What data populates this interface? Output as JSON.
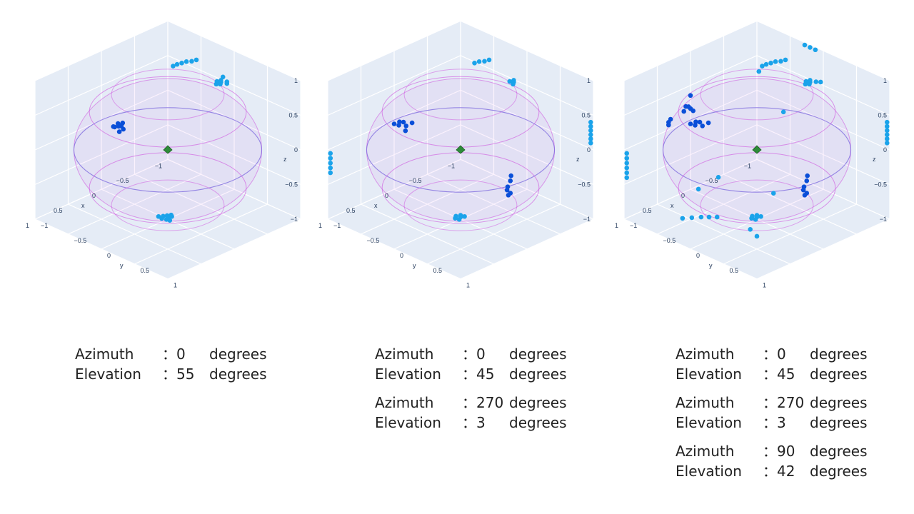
{
  "colors": {
    "background": "#ffffff",
    "pane": "#e5ecf6",
    "grid": "#ffffff",
    "tick": "#2a3f5f",
    "point_light": "#1aa3ea",
    "point_dark": "#0a4fd8",
    "sphere": "#cc44dd",
    "equator": "#7a66dd",
    "marker": "#2e8b3a"
  },
  "chart_data": [
    {
      "type": "scatter3d",
      "axes": {
        "x": "x",
        "y": "y",
        "z": "z"
      },
      "ticks": {
        "x": [
          "−1",
          "−0.5",
          "0",
          "0.5",
          "1"
        ],
        "y": [
          "1",
          "0.5",
          "0",
          "−0.5",
          "−1"
        ],
        "z": [
          "−1",
          "−0.5",
          "0",
          "0.5",
          "1"
        ]
      },
      "xlim": [
        -1,
        1
      ],
      "ylim": [
        -1,
        1
      ],
      "zlim": [
        -1,
        1
      ],
      "grid": true,
      "series": [
        {
          "values": [
            {
              "x": 0.74,
              "y": 0.0,
              "z": 0.66
            },
            {
              "x": 0.74,
              "y": 0.04,
              "z": 0.68
            },
            {
              "x": 0.71,
              "y": -0.04,
              "z": 0.67
            },
            {
              "x": 0.77,
              "y": -0.03,
              "z": 0.65
            },
            {
              "x": 0.73,
              "y": 0.06,
              "z": 0.64
            },
            {
              "x": 0.76,
              "y": 0.02,
              "z": 0.69
            },
            {
              "x": 0.7,
              "y": 0.02,
              "z": 0.7
            },
            {
              "x": 0.78,
              "y": 0.05,
              "z": 0.62
            },
            {
              "x": 0.75,
              "y": -0.07,
              "z": 0.63
            }
          ]
        },
        {
          "values": [
            {
              "x": 0.0,
              "y": 0.0,
              "z": -0.97
            },
            {
              "x": 0.05,
              "y": 0.03,
              "z": -0.97
            },
            {
              "x": -0.04,
              "y": 0.02,
              "z": -0.97
            },
            {
              "x": 0.02,
              "y": -0.05,
              "z": -0.97
            },
            {
              "x": -0.02,
              "y": -0.03,
              "z": -0.97
            },
            {
              "x": 0.07,
              "y": -0.02,
              "z": -0.97
            },
            {
              "x": 0.04,
              "y": 0.07,
              "z": -0.97
            },
            {
              "x": -0.06,
              "y": -0.01,
              "z": -0.97
            },
            {
              "x": 0.06,
              "y": -0.08,
              "z": -0.97
            },
            {
              "x": -0.4,
              "y": 0.4,
              "z": 0.98
            },
            {
              "x": -0.36,
              "y": 0.43,
              "z": 0.98
            },
            {
              "x": -0.43,
              "y": 0.37,
              "z": 0.98
            },
            {
              "x": -0.38,
              "y": 0.36,
              "z": 0.98
            },
            {
              "x": -0.45,
              "y": 0.44,
              "z": 0.98
            },
            {
              "x": -0.33,
              "y": 0.4,
              "z": 0.98
            },
            {
              "x": -0.5,
              "y": 0.33,
              "z": 0.98
            },
            {
              "x": -0.42,
              "y": 0.47,
              "z": 0.98
            },
            {
              "x": -0.98,
              "y": -0.55,
              "z": 0.64
            },
            {
              "x": -0.98,
              "y": -0.62,
              "z": 0.59
            },
            {
              "x": -0.98,
              "y": -0.7,
              "z": 0.55
            },
            {
              "x": -0.98,
              "y": -0.77,
              "z": 0.5
            },
            {
              "x": -0.98,
              "y": -0.84,
              "z": 0.45
            },
            {
              "x": -0.98,
              "y": -0.9,
              "z": 0.4
            }
          ]
        },
        {
          "values": [
            {
              "x": 0.0,
              "y": 0.0,
              "z": 0.0
            }
          ]
        }
      ]
    },
    {
      "type": "scatter3d",
      "axes": {
        "x": "x",
        "y": "y",
        "z": "z"
      },
      "ticks": {
        "x": [
          "−1",
          "−0.5",
          "0",
          "0.5",
          "1"
        ],
        "y": [
          "1",
          "0.5",
          "0",
          "−0.5",
          "−1"
        ],
        "z": [
          "−1",
          "−0.5",
          "0",
          "0.5",
          "1"
        ]
      },
      "xlim": [
        -1,
        1
      ],
      "ylim": [
        -1,
        1
      ],
      "zlim": [
        -1,
        1
      ],
      "grid": true,
      "series": [
        {
          "values": [
            {
              "x": 0.73,
              "y": -0.13,
              "z": 0.66
            },
            {
              "x": 0.75,
              "y": -0.07,
              "z": 0.64
            },
            {
              "x": 0.72,
              "y": -0.2,
              "z": 0.63
            },
            {
              "x": 0.77,
              "y": -0.16,
              "z": 0.62
            },
            {
              "x": 0.7,
              "y": -0.03,
              "z": 0.68
            },
            {
              "x": 0.76,
              "y": -0.24,
              "z": 0.6
            },
            {
              "x": 0.79,
              "y": -0.04,
              "z": 0.6
            },
            {
              "x": -0.02,
              "y": 0.73,
              "z": -0.14
            },
            {
              "x": 0.03,
              "y": 0.74,
              "z": -0.2
            },
            {
              "x": -0.04,
              "y": 0.72,
              "z": -0.08
            },
            {
              "x": 0.02,
              "y": 0.72,
              "z": -0.26
            },
            {
              "x": 0.0,
              "y": 0.75,
              "z": -0.3
            },
            {
              "x": -0.02,
              "y": 0.7,
              "z": -0.36
            }
          ]
        },
        {
          "values": [
            {
              "x": 0.0,
              "y": 0.0,
              "z": -0.97
            },
            {
              "x": 0.05,
              "y": 0.03,
              "z": -0.97
            },
            {
              "x": -0.04,
              "y": 0.02,
              "z": -0.97
            },
            {
              "x": 0.02,
              "y": -0.05,
              "z": -0.97
            },
            {
              "x": -0.03,
              "y": -0.03,
              "z": -0.97
            },
            {
              "x": 0.06,
              "y": -0.02,
              "z": -0.97
            },
            {
              "x": -0.4,
              "y": 0.4,
              "z": 0.98
            },
            {
              "x": -0.36,
              "y": 0.43,
              "z": 0.98
            },
            {
              "x": -0.43,
              "y": 0.37,
              "z": 0.98
            },
            {
              "x": -0.38,
              "y": 0.36,
              "z": 0.98
            },
            {
              "x": -0.98,
              "y": -0.55,
              "z": 0.64
            },
            {
              "x": -0.98,
              "y": -0.62,
              "z": 0.59
            },
            {
              "x": -0.98,
              "y": -0.7,
              "z": 0.55
            },
            {
              "x": -0.98,
              "y": -0.77,
              "z": 0.5
            },
            {
              "x": -0.98,
              "y": 0.98,
              "z": 0.4
            },
            {
              "x": -0.98,
              "y": 0.98,
              "z": 0.34
            },
            {
              "x": -0.98,
              "y": 0.98,
              "z": 0.28
            },
            {
              "x": -0.98,
              "y": 0.98,
              "z": 0.22
            },
            {
              "x": -0.98,
              "y": 0.98,
              "z": 0.16
            },
            {
              "x": -0.98,
              "y": 0.98,
              "z": 0.1
            },
            {
              "x": 0.98,
              "y": -0.98,
              "z": -0.05
            },
            {
              "x": 0.98,
              "y": -0.98,
              "z": -0.12
            },
            {
              "x": 0.98,
              "y": -0.98,
              "z": -0.19
            },
            {
              "x": 0.98,
              "y": -0.98,
              "z": -0.26
            },
            {
              "x": 0.98,
              "y": -0.98,
              "z": -0.33
            }
          ]
        },
        {
          "values": [
            {
              "x": 0.0,
              "y": 0.0,
              "z": 0.0
            }
          ]
        }
      ]
    },
    {
      "type": "scatter3d",
      "axes": {
        "x": "x",
        "y": "y",
        "z": "z"
      },
      "ticks": {
        "x": [
          "−1",
          "−0.5",
          "0",
          "0.5",
          "1"
        ],
        "y": [
          "1",
          "0.5",
          "0",
          "−0.5",
          "−1"
        ],
        "z": [
          "−1",
          "−0.5",
          "0",
          "0.5",
          "1"
        ]
      },
      "xlim": [
        -1,
        1
      ],
      "ylim": [
        -1,
        1
      ],
      "zlim": [
        -1,
        1
      ],
      "grid": true,
      "series": [
        {
          "values": [
            {
              "x": 0.73,
              "y": -0.13,
              "z": 0.66
            },
            {
              "x": 0.75,
              "y": -0.07,
              "z": 0.64
            },
            {
              "x": 0.72,
              "y": -0.2,
              "z": 0.63
            },
            {
              "x": 0.77,
              "y": -0.16,
              "z": 0.62
            },
            {
              "x": 0.7,
              "y": -0.03,
              "z": 0.68
            },
            {
              "x": 0.76,
              "y": -0.24,
              "z": 0.6
            },
            {
              "x": 0.66,
              "y": -0.3,
              "z": 0.72
            },
            {
              "x": 0.62,
              "y": -0.38,
              "z": 0.7
            },
            {
              "x": 0.58,
              "y": -0.45,
              "z": 0.68
            },
            {
              "x": 0.55,
              "y": -0.52,
              "z": 0.64
            },
            {
              "x": 0.6,
              "y": -0.5,
              "z": 0.6
            },
            {
              "x": -0.02,
              "y": 0.73,
              "z": -0.14
            },
            {
              "x": 0.03,
              "y": 0.74,
              "z": -0.2
            },
            {
              "x": -0.04,
              "y": 0.72,
              "z": -0.08
            },
            {
              "x": 0.02,
              "y": 0.72,
              "z": -0.26
            },
            {
              "x": 0.0,
              "y": 0.75,
              "z": -0.3
            },
            {
              "x": -0.02,
              "y": 0.7,
              "z": -0.36
            },
            {
              "x": 0.6,
              "y": -0.7,
              "z": 0.4
            },
            {
              "x": 0.55,
              "y": -0.78,
              "z": 0.3
            },
            {
              "x": 0.48,
              "y": -0.85,
              "z": 0.2
            },
            {
              "x": 0.4,
              "y": -0.6,
              "z": 0.7
            }
          ]
        },
        {
          "values": [
            {
              "x": 0.0,
              "y": 0.0,
              "z": -0.97
            },
            {
              "x": 0.05,
              "y": 0.03,
              "z": -0.97
            },
            {
              "x": -0.04,
              "y": 0.02,
              "z": -0.97
            },
            {
              "x": 0.02,
              "y": -0.05,
              "z": -0.97
            },
            {
              "x": -0.03,
              "y": -0.03,
              "z": -0.97
            },
            {
              "x": 0.06,
              "y": -0.02,
              "z": -0.97
            },
            {
              "x": 0.3,
              "y": -0.3,
              "z": -0.97
            },
            {
              "x": 0.36,
              "y": -0.36,
              "z": -0.97
            },
            {
              "x": 0.42,
              "y": -0.42,
              "z": -0.97
            },
            {
              "x": 0.5,
              "y": -0.48,
              "z": -0.97
            },
            {
              "x": 0.58,
              "y": -0.54,
              "z": -0.97
            },
            {
              "x": -0.4,
              "y": 0.4,
              "z": 0.98
            },
            {
              "x": -0.36,
              "y": 0.43,
              "z": 0.98
            },
            {
              "x": -0.43,
              "y": 0.37,
              "z": 0.98
            },
            {
              "x": -0.38,
              "y": 0.36,
              "z": 0.98
            },
            {
              "x": -0.45,
              "y": 0.44,
              "z": 0.98
            },
            {
              "x": -0.33,
              "y": 0.4,
              "z": 0.98
            },
            {
              "x": -0.48,
              "y": 0.48,
              "z": 0.98
            },
            {
              "x": -0.98,
              "y": -0.1,
              "z": 0.98
            },
            {
              "x": -0.98,
              "y": -0.18,
              "z": 0.98
            },
            {
              "x": -0.98,
              "y": -0.26,
              "z": 0.98
            },
            {
              "x": -0.98,
              "y": -0.55,
              "z": 0.64
            },
            {
              "x": -0.98,
              "y": -0.62,
              "z": 0.59
            },
            {
              "x": -0.98,
              "y": -0.7,
              "z": 0.55
            },
            {
              "x": -0.98,
              "y": -0.77,
              "z": 0.5
            },
            {
              "x": -0.98,
              "y": -0.84,
              "z": 0.45
            },
            {
              "x": -0.98,
              "y": -0.9,
              "z": 0.4
            },
            {
              "x": -0.98,
              "y": -0.95,
              "z": 0.3
            },
            {
              "x": -0.98,
              "y": 0.98,
              "z": 0.4
            },
            {
              "x": -0.98,
              "y": 0.98,
              "z": 0.34
            },
            {
              "x": -0.98,
              "y": 0.98,
              "z": 0.28
            },
            {
              "x": -0.98,
              "y": 0.98,
              "z": 0.22
            },
            {
              "x": -0.98,
              "y": 0.98,
              "z": 0.16
            },
            {
              "x": -0.98,
              "y": 0.98,
              "z": 0.1
            },
            {
              "x": 0.98,
              "y": -0.98,
              "z": -0.05
            },
            {
              "x": 0.98,
              "y": -0.98,
              "z": -0.12
            },
            {
              "x": 0.98,
              "y": -0.98,
              "z": -0.19
            },
            {
              "x": 0.98,
              "y": -0.98,
              "z": -0.26
            },
            {
              "x": 0.98,
              "y": -0.98,
              "z": -0.33
            },
            {
              "x": 0.98,
              "y": -0.98,
              "z": -0.4
            },
            {
              "x": 0.3,
              "y": 0.7,
              "z": 0.98
            },
            {
              "x": 0.98,
              "y": 0.1,
              "z": -0.1
            },
            {
              "x": 0.98,
              "y": 0.4,
              "z": 0.2
            },
            {
              "x": 0.6,
              "y": 0.85,
              "z": 0.0
            },
            {
              "x": 0.75,
              "y": 0.75,
              "z": -0.6
            },
            {
              "x": 0.8,
              "y": 0.7,
              "z": -0.5
            }
          ]
        },
        {
          "values": [
            {
              "x": 0.0,
              "y": 0.0,
              "z": 0.0
            }
          ]
        }
      ]
    }
  ],
  "captions": [
    [
      {
        "azimuth_label": "Azimuth",
        "azimuth_colon": "：",
        "azimuth_value": "0",
        "azimuth_unit": "degrees",
        "elevation_label": "Elevation",
        "elevation_colon": "：",
        "elevation_value": "55",
        "elevation_unit": "degrees"
      }
    ],
    [
      {
        "azimuth_label": "Azimuth",
        "azimuth_colon": "：",
        "azimuth_value": "0",
        "azimuth_unit": "degrees",
        "elevation_label": "Elevation",
        "elevation_colon": "：",
        "elevation_value": "45",
        "elevation_unit": "degrees"
      },
      {
        "azimuth_label": "Azimuth",
        "azimuth_colon": "：",
        "azimuth_value": "270",
        "azimuth_unit": "degrees",
        "elevation_label": "Elevation",
        "elevation_colon": "：",
        "elevation_value": "3",
        "elevation_unit": "degrees"
      }
    ],
    [
      {
        "azimuth_label": "Azimuth",
        "azimuth_colon": "：",
        "azimuth_value": "0",
        "azimuth_unit": "degrees",
        "elevation_label": "Elevation",
        "elevation_colon": "：",
        "elevation_value": "45",
        "elevation_unit": "degrees"
      },
      {
        "azimuth_label": "Azimuth",
        "azimuth_colon": "：",
        "azimuth_value": "270",
        "azimuth_unit": "degrees",
        "elevation_label": "Elevation",
        "elevation_colon": "：",
        "elevation_value": "3",
        "elevation_unit": "degrees"
      },
      {
        "azimuth_label": "Azimuth",
        "azimuth_colon": "：",
        "azimuth_value": "90",
        "azimuth_unit": "degrees",
        "elevation_label": "Elevation",
        "elevation_colon": "：",
        "elevation_value": "42",
        "elevation_unit": "degrees"
      }
    ]
  ]
}
